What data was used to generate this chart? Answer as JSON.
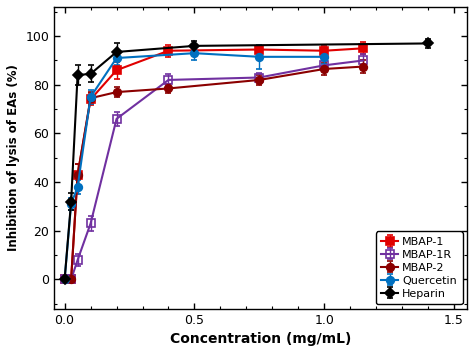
{
  "title": "",
  "xlabel": "Concentration (mg/mL)",
  "ylabel": "Inhibition of lysis of EAs (%)",
  "xlim": [
    -0.04,
    1.55
  ],
  "ylim": [
    -12,
    112
  ],
  "series": {
    "MBAP-1": {
      "x": [
        0.0,
        0.025,
        0.05,
        0.1,
        0.2,
        0.4,
        0.75,
        1.0,
        1.15
      ],
      "y": [
        0.0,
        0.0,
        43.0,
        74.0,
        86.0,
        94.0,
        94.5,
        94.0,
        95.0
      ],
      "yerr": [
        0.5,
        0.5,
        4.5,
        2.5,
        3.5,
        2.5,
        2.0,
        2.0,
        2.5
      ],
      "color": "#e00000",
      "marker": "s",
      "mfc": "#e00000",
      "mec": "#e00000"
    },
    "MBAP-1R": {
      "x": [
        0.0,
        0.025,
        0.05,
        0.1,
        0.2,
        0.4,
        0.75,
        1.0,
        1.15
      ],
      "y": [
        0.0,
        0.0,
        8.0,
        23.0,
        66.0,
        82.0,
        83.0,
        88.0,
        90.0
      ],
      "yerr": [
        0.5,
        0.5,
        2.5,
        3.0,
        3.0,
        2.5,
        2.0,
        2.5,
        2.5
      ],
      "color": "#7030a0",
      "marker": "s",
      "mfc": "none",
      "mec": "#7030a0"
    },
    "MBAP-2": {
      "x": [
        0.0,
        0.025,
        0.05,
        0.1,
        0.2,
        0.4,
        0.75,
        1.0,
        1.15
      ],
      "y": [
        0.0,
        0.0,
        43.0,
        74.5,
        77.0,
        78.5,
        82.0,
        86.5,
        87.5
      ],
      "yerr": [
        0.5,
        0.5,
        4.5,
        2.5,
        2.0,
        2.0,
        2.0,
        2.5,
        2.5
      ],
      "color": "#8b0000",
      "marker": "o",
      "mfc": "#8b0000",
      "mec": "#8b0000"
    },
    "Quercetin": {
      "x": [
        0.0,
        0.025,
        0.05,
        0.1,
        0.2,
        0.5,
        0.75,
        1.0
      ],
      "y": [
        0.0,
        31.0,
        38.0,
        75.0,
        91.0,
        93.0,
        91.5,
        91.5
      ],
      "yerr": [
        1.0,
        2.5,
        3.0,
        3.0,
        3.0,
        3.0,
        5.0,
        3.0
      ],
      "color": "#0070c0",
      "marker": "o",
      "mfc": "#0070c0",
      "mec": "#0070c0"
    },
    "Heparin": {
      "x": [
        0.0,
        0.025,
        0.05,
        0.1,
        0.2,
        0.5,
        1.4
      ],
      "y": [
        0.0,
        32.0,
        84.0,
        84.5,
        93.5,
        96.0,
        97.0
      ],
      "yerr": [
        1.0,
        3.5,
        4.0,
        3.5,
        3.5,
        2.0,
        2.0
      ],
      "color": "#000000",
      "marker": "D",
      "mfc": "#000000",
      "mec": "#000000"
    }
  },
  "legend_order": [
    "MBAP-1",
    "MBAP-1R",
    "MBAP-2",
    "Quercetin",
    "Heparin"
  ],
  "yticks": [
    0,
    20,
    40,
    60,
    80,
    100
  ],
  "xticks": [
    0.0,
    0.5,
    1.0,
    1.5
  ],
  "background_color": "#ffffff"
}
